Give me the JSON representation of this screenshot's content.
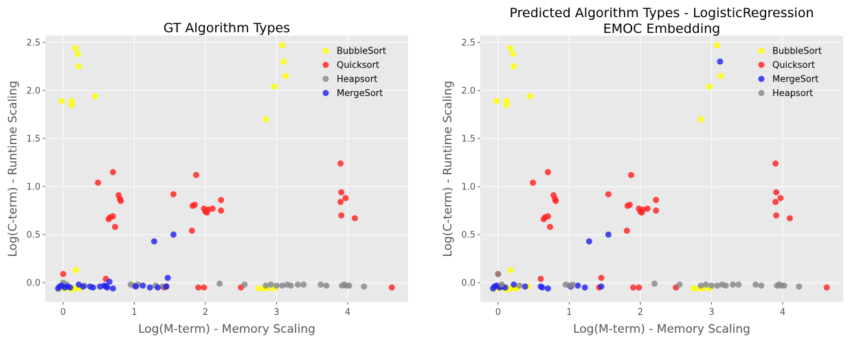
{
  "chart_data": [
    {
      "type": "scatter",
      "title": [
        "GT Algorithm Types"
      ],
      "xlabel": "Log(M-term) - Memory Scaling",
      "ylabel": "Log(C-term) - Runtime Scaling",
      "xlim": [
        -0.25,
        4.85
      ],
      "ylim": [
        -0.2,
        2.57
      ],
      "xticks": [
        0,
        1,
        2,
        3,
        4
      ],
      "yticks": [
        0.0,
        0.5,
        1.0,
        1.5,
        2.0,
        2.5
      ],
      "ytick_labels": [
        "0.0",
        "0.5",
        "1.0",
        "1.5",
        "2.0",
        "2.5"
      ],
      "grid": true,
      "legend_position": "top-right",
      "series": [
        {
          "name": "BubbleSort",
          "color": "#ffff00",
          "points": [
            [
              -0.02,
              1.89
            ],
            [
              0.12,
              1.89
            ],
            [
              0.12,
              1.85
            ],
            [
              0.17,
              2.44
            ],
            [
              0.21,
              2.38
            ],
            [
              0.22,
              2.25
            ],
            [
              0.45,
              1.94
            ],
            [
              0.18,
              0.13
            ],
            [
              -0.05,
              -0.06
            ],
            [
              0.02,
              -0.06
            ],
            [
              0.08,
              -0.05
            ],
            [
              0.12,
              -0.07
            ],
            [
              0.16,
              -0.06
            ],
            [
              0.2,
              -0.05
            ],
            [
              0.24,
              -0.06
            ],
            [
              2.75,
              -0.06
            ],
            [
              2.82,
              -0.06
            ],
            [
              2.88,
              -0.06
            ],
            [
              2.97,
              -0.06
            ],
            [
              2.85,
              1.7
            ],
            [
              2.97,
              2.04
            ],
            [
              3.08,
              2.47
            ],
            [
              3.1,
              2.3
            ],
            [
              3.13,
              2.15
            ]
          ]
        },
        {
          "name": "Quicksort",
          "color": "#ff2222",
          "points": [
            [
              0.0,
              0.09
            ],
            [
              0.49,
              1.04
            ],
            [
              0.6,
              0.04
            ],
            [
              0.64,
              0.66
            ],
            [
              0.66,
              0.68
            ],
            [
              0.7,
              0.69
            ],
            [
              0.7,
              1.15
            ],
            [
              0.73,
              0.58
            ],
            [
              0.78,
              0.91
            ],
            [
              0.8,
              0.87
            ],
            [
              0.81,
              0.85
            ],
            [
              1.42,
              -0.05
            ],
            [
              1.45,
              -0.04
            ],
            [
              1.55,
              0.92
            ],
            [
              1.81,
              0.54
            ],
            [
              1.82,
              0.8
            ],
            [
              1.85,
              0.81
            ],
            [
              1.87,
              1.12
            ],
            [
              1.9,
              -0.05
            ],
            [
              1.98,
              -0.05
            ],
            [
              1.98,
              0.77
            ],
            [
              2.0,
              0.74
            ],
            [
              2.02,
              0.73
            ],
            [
              2.04,
              0.76
            ],
            [
              2.1,
              0.77
            ],
            [
              2.22,
              0.86
            ],
            [
              2.22,
              0.75
            ],
            [
              2.5,
              -0.05
            ],
            [
              3.9,
              1.24
            ],
            [
              3.9,
              0.84
            ],
            [
              3.91,
              0.94
            ],
            [
              3.91,
              0.7
            ],
            [
              3.97,
              0.88
            ],
            [
              4.1,
              0.67
            ],
            [
              4.62,
              -0.05
            ]
          ]
        },
        {
          "name": "Heapsort",
          "color": "#888888",
          "points": [
            [
              0.0,
              0.0
            ],
            [
              0.05,
              -0.02
            ],
            [
              0.3,
              -0.03
            ],
            [
              0.95,
              -0.02
            ],
            [
              1.0,
              -0.03
            ],
            [
              1.05,
              -0.02
            ],
            [
              1.3,
              -0.03
            ],
            [
              1.4,
              -0.04
            ],
            [
              2.2,
              -0.01
            ],
            [
              2.55,
              -0.02
            ],
            [
              2.85,
              -0.03
            ],
            [
              2.92,
              -0.02
            ],
            [
              3.0,
              -0.03
            ],
            [
              3.08,
              -0.03
            ],
            [
              3.15,
              -0.02
            ],
            [
              3.2,
              -0.03
            ],
            [
              3.3,
              -0.02
            ],
            [
              3.38,
              -0.02
            ],
            [
              3.62,
              -0.02
            ],
            [
              3.7,
              -0.03
            ],
            [
              3.92,
              -0.03
            ],
            [
              3.95,
              -0.02
            ],
            [
              3.98,
              -0.03
            ],
            [
              4.02,
              -0.03
            ],
            [
              4.23,
              -0.04
            ]
          ]
        },
        {
          "name": "MergeSort",
          "color": "#2222ee",
          "points": [
            [
              -0.07,
              -0.06
            ],
            [
              -0.05,
              -0.04
            ],
            [
              -0.02,
              -0.03
            ],
            [
              0.02,
              -0.05
            ],
            [
              0.06,
              -0.04
            ],
            [
              0.1,
              -0.05
            ],
            [
              0.22,
              -0.02
            ],
            [
              0.28,
              -0.04
            ],
            [
              0.38,
              -0.04
            ],
            [
              0.42,
              -0.05
            ],
            [
              0.52,
              -0.04
            ],
            [
              0.58,
              -0.03
            ],
            [
              0.6,
              -0.04
            ],
            [
              0.62,
              -0.05
            ],
            [
              0.65,
              0.01
            ],
            [
              0.7,
              -0.06
            ],
            [
              1.02,
              -0.04
            ],
            [
              1.12,
              -0.03
            ],
            [
              1.22,
              -0.05
            ],
            [
              1.33,
              -0.05
            ],
            [
              1.28,
              0.43
            ],
            [
              1.45,
              -0.04
            ],
            [
              1.47,
              0.05
            ],
            [
              1.55,
              0.5
            ]
          ]
        }
      ]
    },
    {
      "type": "scatter",
      "title": [
        "Predicted Algorithm Types - LogisticRegression",
        "EMOC Embedding"
      ],
      "xlabel": "Log(M-term) - Memory Scaling",
      "ylabel": "Log(C-term) - Runtime Scaling",
      "xlim": [
        -0.25,
        4.85
      ],
      "ylim": [
        -0.2,
        2.57
      ],
      "xticks": [
        0,
        1,
        2,
        3,
        4
      ],
      "yticks": [
        0.0,
        0.5,
        1.0,
        1.5,
        2.0,
        2.5
      ],
      "ytick_labels": [
        "0.0",
        "0.5",
        "1.0",
        "1.5",
        "2.0",
        "2.5"
      ],
      "grid": true,
      "legend_position": "top-right",
      "series": [
        {
          "name": "BubbleSort",
          "color": "#ffff00",
          "points": [
            [
              -0.02,
              1.89
            ],
            [
              0.12,
              1.89
            ],
            [
              0.12,
              1.85
            ],
            [
              0.17,
              2.44
            ],
            [
              0.21,
              2.38
            ],
            [
              0.22,
              2.25
            ],
            [
              0.45,
              1.94
            ],
            [
              0.18,
              0.13
            ],
            [
              -0.05,
              -0.06
            ],
            [
              0.02,
              -0.06
            ],
            [
              0.08,
              -0.05
            ],
            [
              0.12,
              -0.07
            ],
            [
              0.16,
              -0.06
            ],
            [
              0.2,
              -0.05
            ],
            [
              0.24,
              -0.06
            ],
            [
              0.28,
              -0.05
            ],
            [
              0.42,
              -0.04
            ],
            [
              2.75,
              -0.06
            ],
            [
              2.82,
              -0.06
            ],
            [
              2.88,
              -0.06
            ],
            [
              2.97,
              -0.06
            ],
            [
              2.85,
              1.7
            ],
            [
              2.97,
              2.04
            ],
            [
              3.08,
              2.47
            ],
            [
              3.13,
              2.15
            ]
          ]
        },
        {
          "name": "Quicksort",
          "color": "#ff2222",
          "points": [
            [
              0.0,
              0.09
            ],
            [
              0.49,
              1.04
            ],
            [
              0.6,
              0.04
            ],
            [
              0.64,
              0.66
            ],
            [
              0.66,
              0.68
            ],
            [
              0.7,
              0.69
            ],
            [
              0.7,
              1.15
            ],
            [
              0.73,
              0.58
            ],
            [
              0.78,
              0.91
            ],
            [
              0.8,
              0.87
            ],
            [
              0.81,
              0.85
            ],
            [
              1.42,
              -0.05
            ],
            [
              1.45,
              0.05
            ],
            [
              1.55,
              0.92
            ],
            [
              1.81,
              0.54
            ],
            [
              1.82,
              0.8
            ],
            [
              1.85,
              0.81
            ],
            [
              1.87,
              1.12
            ],
            [
              1.9,
              -0.05
            ],
            [
              1.98,
              -0.05
            ],
            [
              1.98,
              0.77
            ],
            [
              2.0,
              0.74
            ],
            [
              2.02,
              0.73
            ],
            [
              2.04,
              0.76
            ],
            [
              2.1,
              0.77
            ],
            [
              2.22,
              0.86
            ],
            [
              2.22,
              0.75
            ],
            [
              2.5,
              -0.05
            ],
            [
              3.9,
              1.24
            ],
            [
              3.9,
              0.84
            ],
            [
              3.91,
              0.94
            ],
            [
              3.91,
              0.7
            ],
            [
              3.97,
              0.88
            ],
            [
              4.1,
              0.67
            ],
            [
              4.62,
              -0.05
            ]
          ]
        },
        {
          "name": "MergeSort",
          "color": "#2222ee",
          "points": [
            [
              -0.07,
              -0.06
            ],
            [
              -0.05,
              -0.04
            ],
            [
              -0.02,
              -0.03
            ],
            [
              0.02,
              -0.05
            ],
            [
              0.06,
              -0.04
            ],
            [
              0.1,
              -0.05
            ],
            [
              0.22,
              -0.02
            ],
            [
              0.38,
              -0.04
            ],
            [
              0.6,
              -0.04
            ],
            [
              0.62,
              -0.05
            ],
            [
              0.7,
              -0.06
            ],
            [
              1.02,
              -0.04
            ],
            [
              1.12,
              -0.03
            ],
            [
              1.22,
              -0.05
            ],
            [
              1.28,
              0.43
            ],
            [
              1.45,
              -0.04
            ],
            [
              1.55,
              0.5
            ],
            [
              3.12,
              2.3
            ]
          ]
        },
        {
          "name": "Heapsort",
          "color": "#888888",
          "points": [
            [
              0.0,
              0.09
            ],
            [
              0.05,
              -0.02
            ],
            [
              0.3,
              -0.03
            ],
            [
              0.95,
              -0.02
            ],
            [
              1.0,
              -0.03
            ],
            [
              1.05,
              -0.02
            ],
            [
              2.2,
              -0.01
            ],
            [
              2.55,
              -0.02
            ],
            [
              2.85,
              -0.03
            ],
            [
              2.92,
              -0.02
            ],
            [
              3.0,
              -0.03
            ],
            [
              3.08,
              -0.03
            ],
            [
              3.15,
              -0.02
            ],
            [
              3.2,
              -0.03
            ],
            [
              3.3,
              -0.02
            ],
            [
              3.38,
              -0.02
            ],
            [
              3.62,
              -0.02
            ],
            [
              3.7,
              -0.03
            ],
            [
              3.92,
              -0.03
            ],
            [
              3.95,
              -0.02
            ],
            [
              3.98,
              -0.03
            ],
            [
              4.02,
              -0.03
            ],
            [
              4.23,
              -0.04
            ]
          ]
        }
      ]
    }
  ]
}
